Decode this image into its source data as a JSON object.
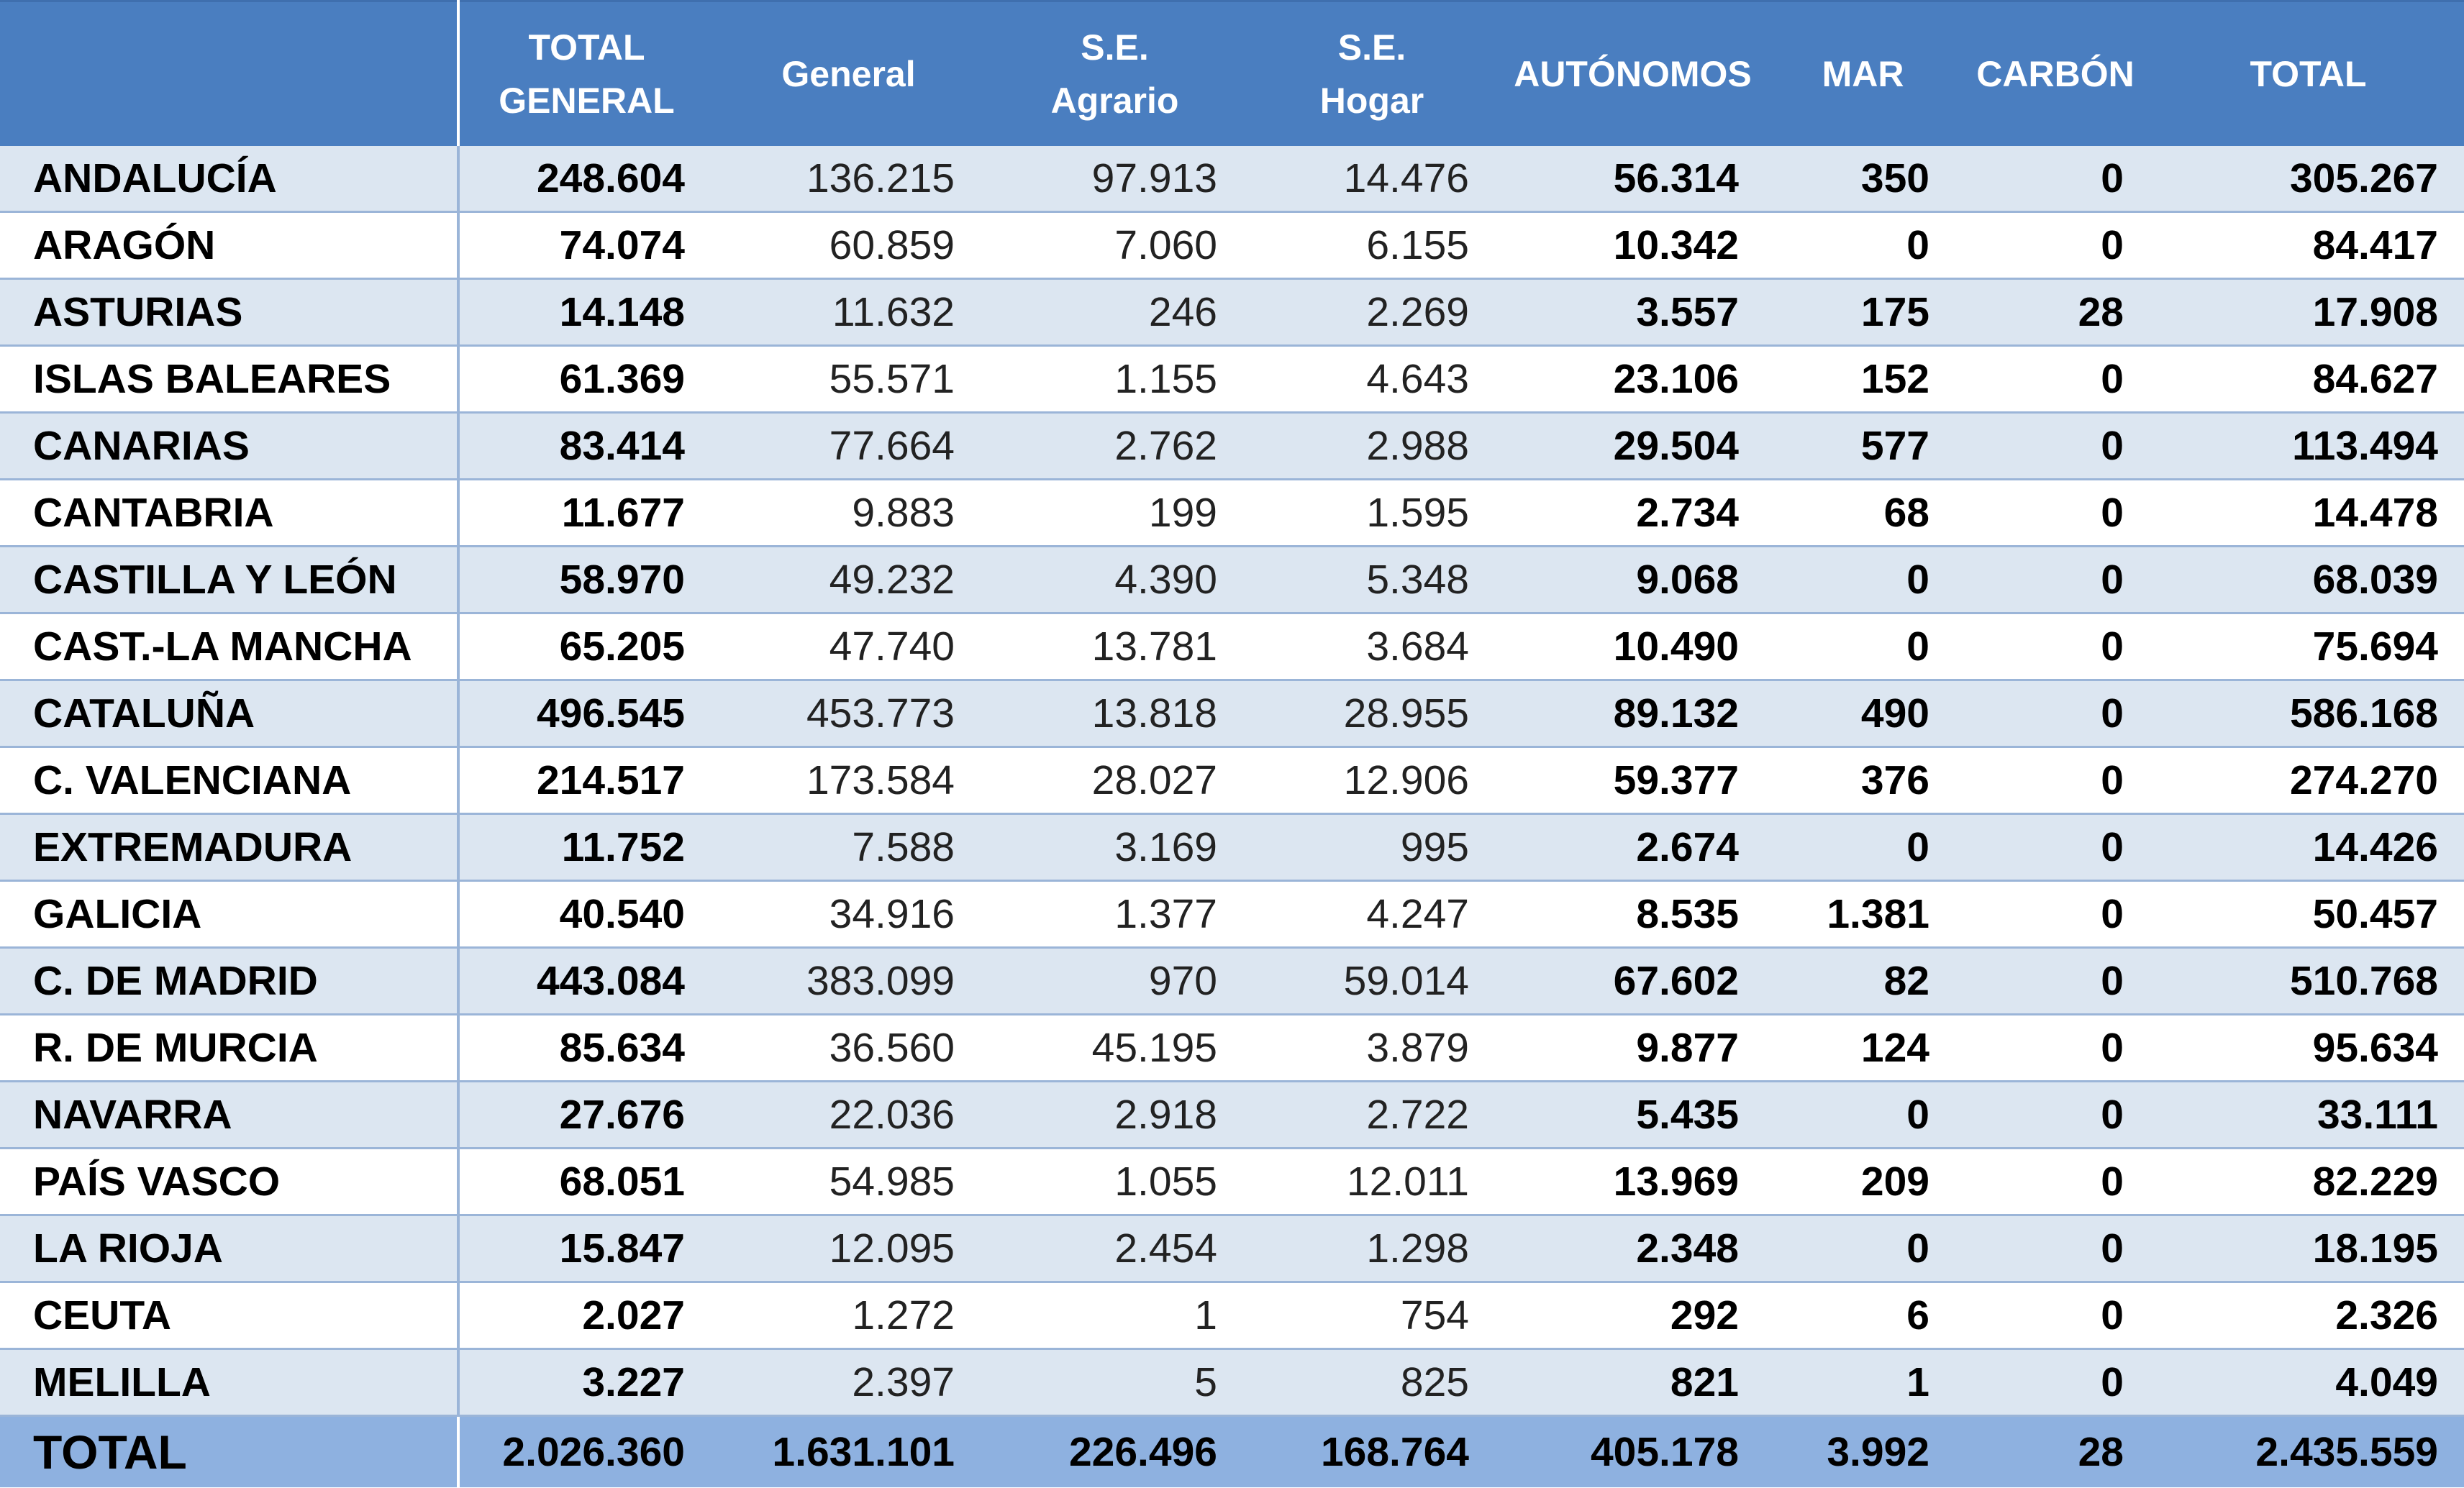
{
  "headers": [
    "",
    "TOTAL\nGENERAL",
    "General",
    "S.E.\nAgrario",
    "S.E.\nHogar",
    "AUTÓNOMOS",
    "MAR",
    "CARBÓN",
    "TOTAL"
  ],
  "rows": [
    [
      "ANDALUCÍA",
      "248.604",
      "136.215",
      "97.913",
      "14.476",
      "56.314",
      "350",
      "0",
      "305.267"
    ],
    [
      "ARAGÓN",
      "74.074",
      "60.859",
      "7.060",
      "6.155",
      "10.342",
      "0",
      "0",
      "84.417"
    ],
    [
      "ASTURIAS",
      "14.148",
      "11.632",
      "246",
      "2.269",
      "3.557",
      "175",
      "28",
      "17.908"
    ],
    [
      "ISLAS BALEARES",
      "61.369",
      "55.571",
      "1.155",
      "4.643",
      "23.106",
      "152",
      "0",
      "84.627"
    ],
    [
      "CANARIAS",
      "83.414",
      "77.664",
      "2.762",
      "2.988",
      "29.504",
      "577",
      "0",
      "113.494"
    ],
    [
      "CANTABRIA",
      "11.677",
      "9.883",
      "199",
      "1.595",
      "2.734",
      "68",
      "0",
      "14.478"
    ],
    [
      "CASTILLA Y LEÓN",
      "58.970",
      "49.232",
      "4.390",
      "5.348",
      "9.068",
      "0",
      "0",
      "68.039"
    ],
    [
      "CAST.-LA MANCHA",
      "65.205",
      "47.740",
      "13.781",
      "3.684",
      "10.490",
      "0",
      "0",
      "75.694"
    ],
    [
      "CATALUÑA",
      "496.545",
      "453.773",
      "13.818",
      "28.955",
      "89.132",
      "490",
      "0",
      "586.168"
    ],
    [
      "C. VALENCIANA",
      "214.517",
      "173.584",
      "28.027",
      "12.906",
      "59.377",
      "376",
      "0",
      "274.270"
    ],
    [
      "EXTREMADURA",
      "11.752",
      "7.588",
      "3.169",
      "995",
      "2.674",
      "0",
      "0",
      "14.426"
    ],
    [
      "GALICIA",
      "40.540",
      "34.916",
      "1.377",
      "4.247",
      "8.535",
      "1.381",
      "0",
      "50.457"
    ],
    [
      "C. DE MADRID",
      "443.084",
      "383.099",
      "970",
      "59.014",
      "67.602",
      "82",
      "0",
      "510.768"
    ],
    [
      "R. DE MURCIA",
      "85.634",
      "36.560",
      "45.195",
      "3.879",
      "9.877",
      "124",
      "0",
      "95.634"
    ],
    [
      "NAVARRA",
      "27.676",
      "22.036",
      "2.918",
      "2.722",
      "5.435",
      "0",
      "0",
      "33.111"
    ],
    [
      "PAÍS VASCO",
      "68.051",
      "54.985",
      "1.055",
      "12.011",
      "13.969",
      "209",
      "0",
      "82.229"
    ],
    [
      "LA RIOJA",
      "15.847",
      "12.095",
      "2.454",
      "1.298",
      "2.348",
      "0",
      "0",
      "18.195"
    ],
    [
      "CEUTA",
      "2.027",
      "1.272",
      "1",
      "754",
      "292",
      "6",
      "0",
      "2.326"
    ],
    [
      "MELILLA",
      "3.227",
      "2.397",
      "5",
      "825",
      "821",
      "1",
      "0",
      "4.049"
    ]
  ],
  "total": [
    "TOTAL",
    "2.026.360",
    "1.631.101",
    "226.496",
    "168.764",
    "405.178",
    "3.992",
    "28",
    "2.435.559"
  ],
  "colors": {
    "header_bg": "#4a7ec0",
    "row_band": "#dce6f1",
    "total_bg": "#8eb1e0"
  }
}
